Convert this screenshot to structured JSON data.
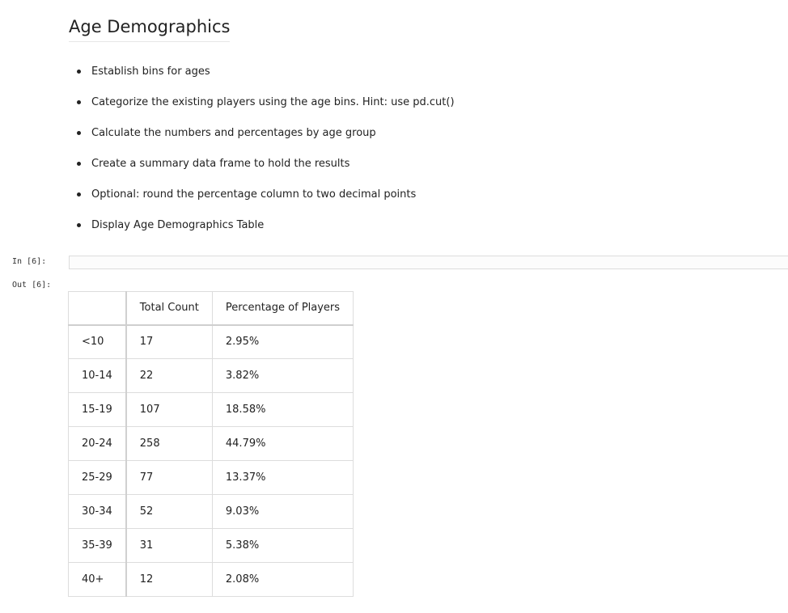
{
  "section": {
    "title": "Age Demographics",
    "bullets": [
      "Establish bins for ages",
      "Categorize the existing players using the age bins. Hint: use pd.cut()",
      "Calculate the numbers and percentages by age group",
      "Create a summary data frame to hold the results",
      "Optional: round the percentage column to two decimal points",
      "Display Age Demographics Table"
    ]
  },
  "cell": {
    "in_prompt": "In [6]:",
    "out_prompt": "Out [6]:",
    "input_code": ""
  },
  "table": {
    "index_header": "",
    "columns": [
      "Total Count",
      "Percentage of Players"
    ],
    "rows": [
      {
        "index": "<10",
        "count": "17",
        "pct": "2.95%"
      },
      {
        "index": "10-14",
        "count": "22",
        "pct": "3.82%"
      },
      {
        "index": "15-19",
        "count": "107",
        "pct": "18.58%"
      },
      {
        "index": "20-24",
        "count": "258",
        "pct": "44.79%"
      },
      {
        "index": "25-29",
        "count": "77",
        "pct": "13.37%"
      },
      {
        "index": "30-34",
        "count": "52",
        "pct": "9.03%"
      },
      {
        "index": "35-39",
        "count": "31",
        "pct": "5.38%"
      },
      {
        "index": "40+",
        "count": "12",
        "pct": "2.08%"
      }
    ]
  }
}
